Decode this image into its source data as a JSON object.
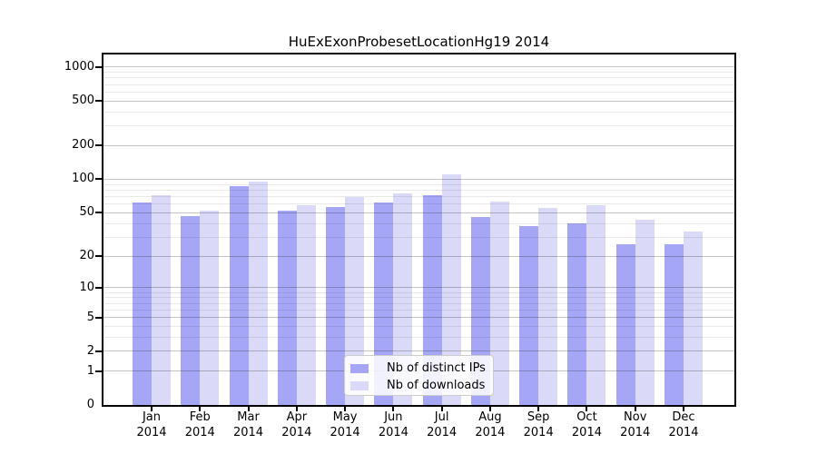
{
  "chart_data": {
    "type": "bar",
    "title": "HuExExonProbesetLocationHg19 2014",
    "categories": [
      "Jan",
      "Feb",
      "Mar",
      "Apr",
      "May",
      "Jun",
      "Jul",
      "Aug",
      "Sep",
      "Oct",
      "Nov",
      "Dec"
    ],
    "x_tick_year": "2014",
    "series": [
      {
        "name": "Nb of distinct IPs",
        "color": "#a6a6f6",
        "values": [
          62,
          47,
          87,
          52,
          56,
          62,
          72,
          46,
          38,
          40,
          26,
          26
        ]
      },
      {
        "name": "Nb of downloads",
        "color": "#dadaf8",
        "values": [
          72,
          52,
          95,
          58,
          69,
          75,
          110,
          63,
          55,
          58,
          43,
          34
        ]
      }
    ],
    "yaxis": {
      "scale": "log10(1+v)",
      "major_ticks": [
        0,
        1,
        2,
        5,
        10,
        20,
        50,
        100,
        200,
        500,
        1000
      ],
      "minor_ticks": [
        3,
        4,
        6,
        7,
        8,
        9,
        30,
        40,
        60,
        70,
        80,
        90,
        300,
        400,
        600,
        700,
        800,
        900
      ],
      "ylim": [
        0,
        1320
      ]
    },
    "grid": true,
    "legend": {
      "position": "bottom-center"
    },
    "colors": {
      "grid_major": "#c4c4c4",
      "grid_minor": "#e9e9e9",
      "axis": "#000000",
      "background": "#ffffff"
    }
  }
}
